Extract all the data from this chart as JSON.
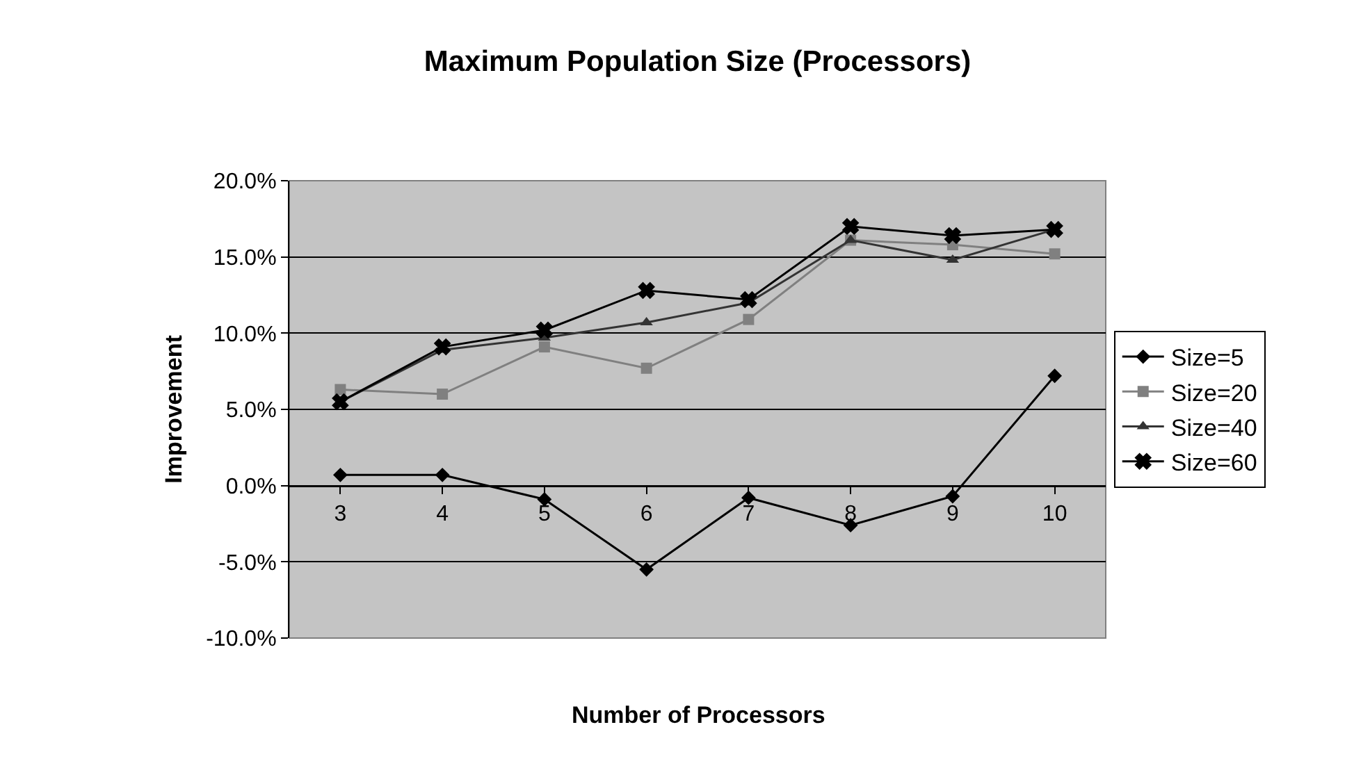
{
  "chart_data": {
    "type": "line",
    "title": "Maximum Population Size (Processors)",
    "xlabel": "Number of Processors",
    "ylabel": "Improvement",
    "categories": [
      "3",
      "4",
      "5",
      "6",
      "7",
      "8",
      "9",
      "10"
    ],
    "ylim": [
      -10,
      20
    ],
    "yticks": [
      {
        "value": -10,
        "label": "-10.0%"
      },
      {
        "value": -5,
        "label": "-5.0%"
      },
      {
        "value": 0,
        "label": "0.0%"
      },
      {
        "value": 5,
        "label": "5.0%"
      },
      {
        "value": 10,
        "label": "10.0%"
      },
      {
        "value": 15,
        "label": "15.0%"
      },
      {
        "value": 20,
        "label": "20.0%"
      }
    ],
    "grid": "y",
    "legend": "right",
    "line_style": "solid",
    "series": [
      {
        "name": "Size=5",
        "color": "#000000",
        "marker": "diamond",
        "values": [
          0.7,
          0.7,
          -0.9,
          -5.5,
          -0.8,
          -2.6,
          -0.7,
          7.2
        ]
      },
      {
        "name": "Size=20",
        "color": "#808080",
        "marker": "square",
        "values": [
          6.3,
          6.0,
          9.1,
          7.7,
          10.9,
          16.1,
          15.8,
          15.2
        ]
      },
      {
        "name": "Size=40",
        "color": "#333333",
        "marker": "triangle",
        "values": [
          5.5,
          8.9,
          9.7,
          10.7,
          12.0,
          16.1,
          14.8,
          16.8
        ]
      },
      {
        "name": "Size=60",
        "color": "#000000",
        "marker": "cross",
        "values": [
          5.5,
          9.1,
          10.2,
          12.8,
          12.2,
          17.0,
          16.4,
          16.8
        ]
      }
    ]
  }
}
